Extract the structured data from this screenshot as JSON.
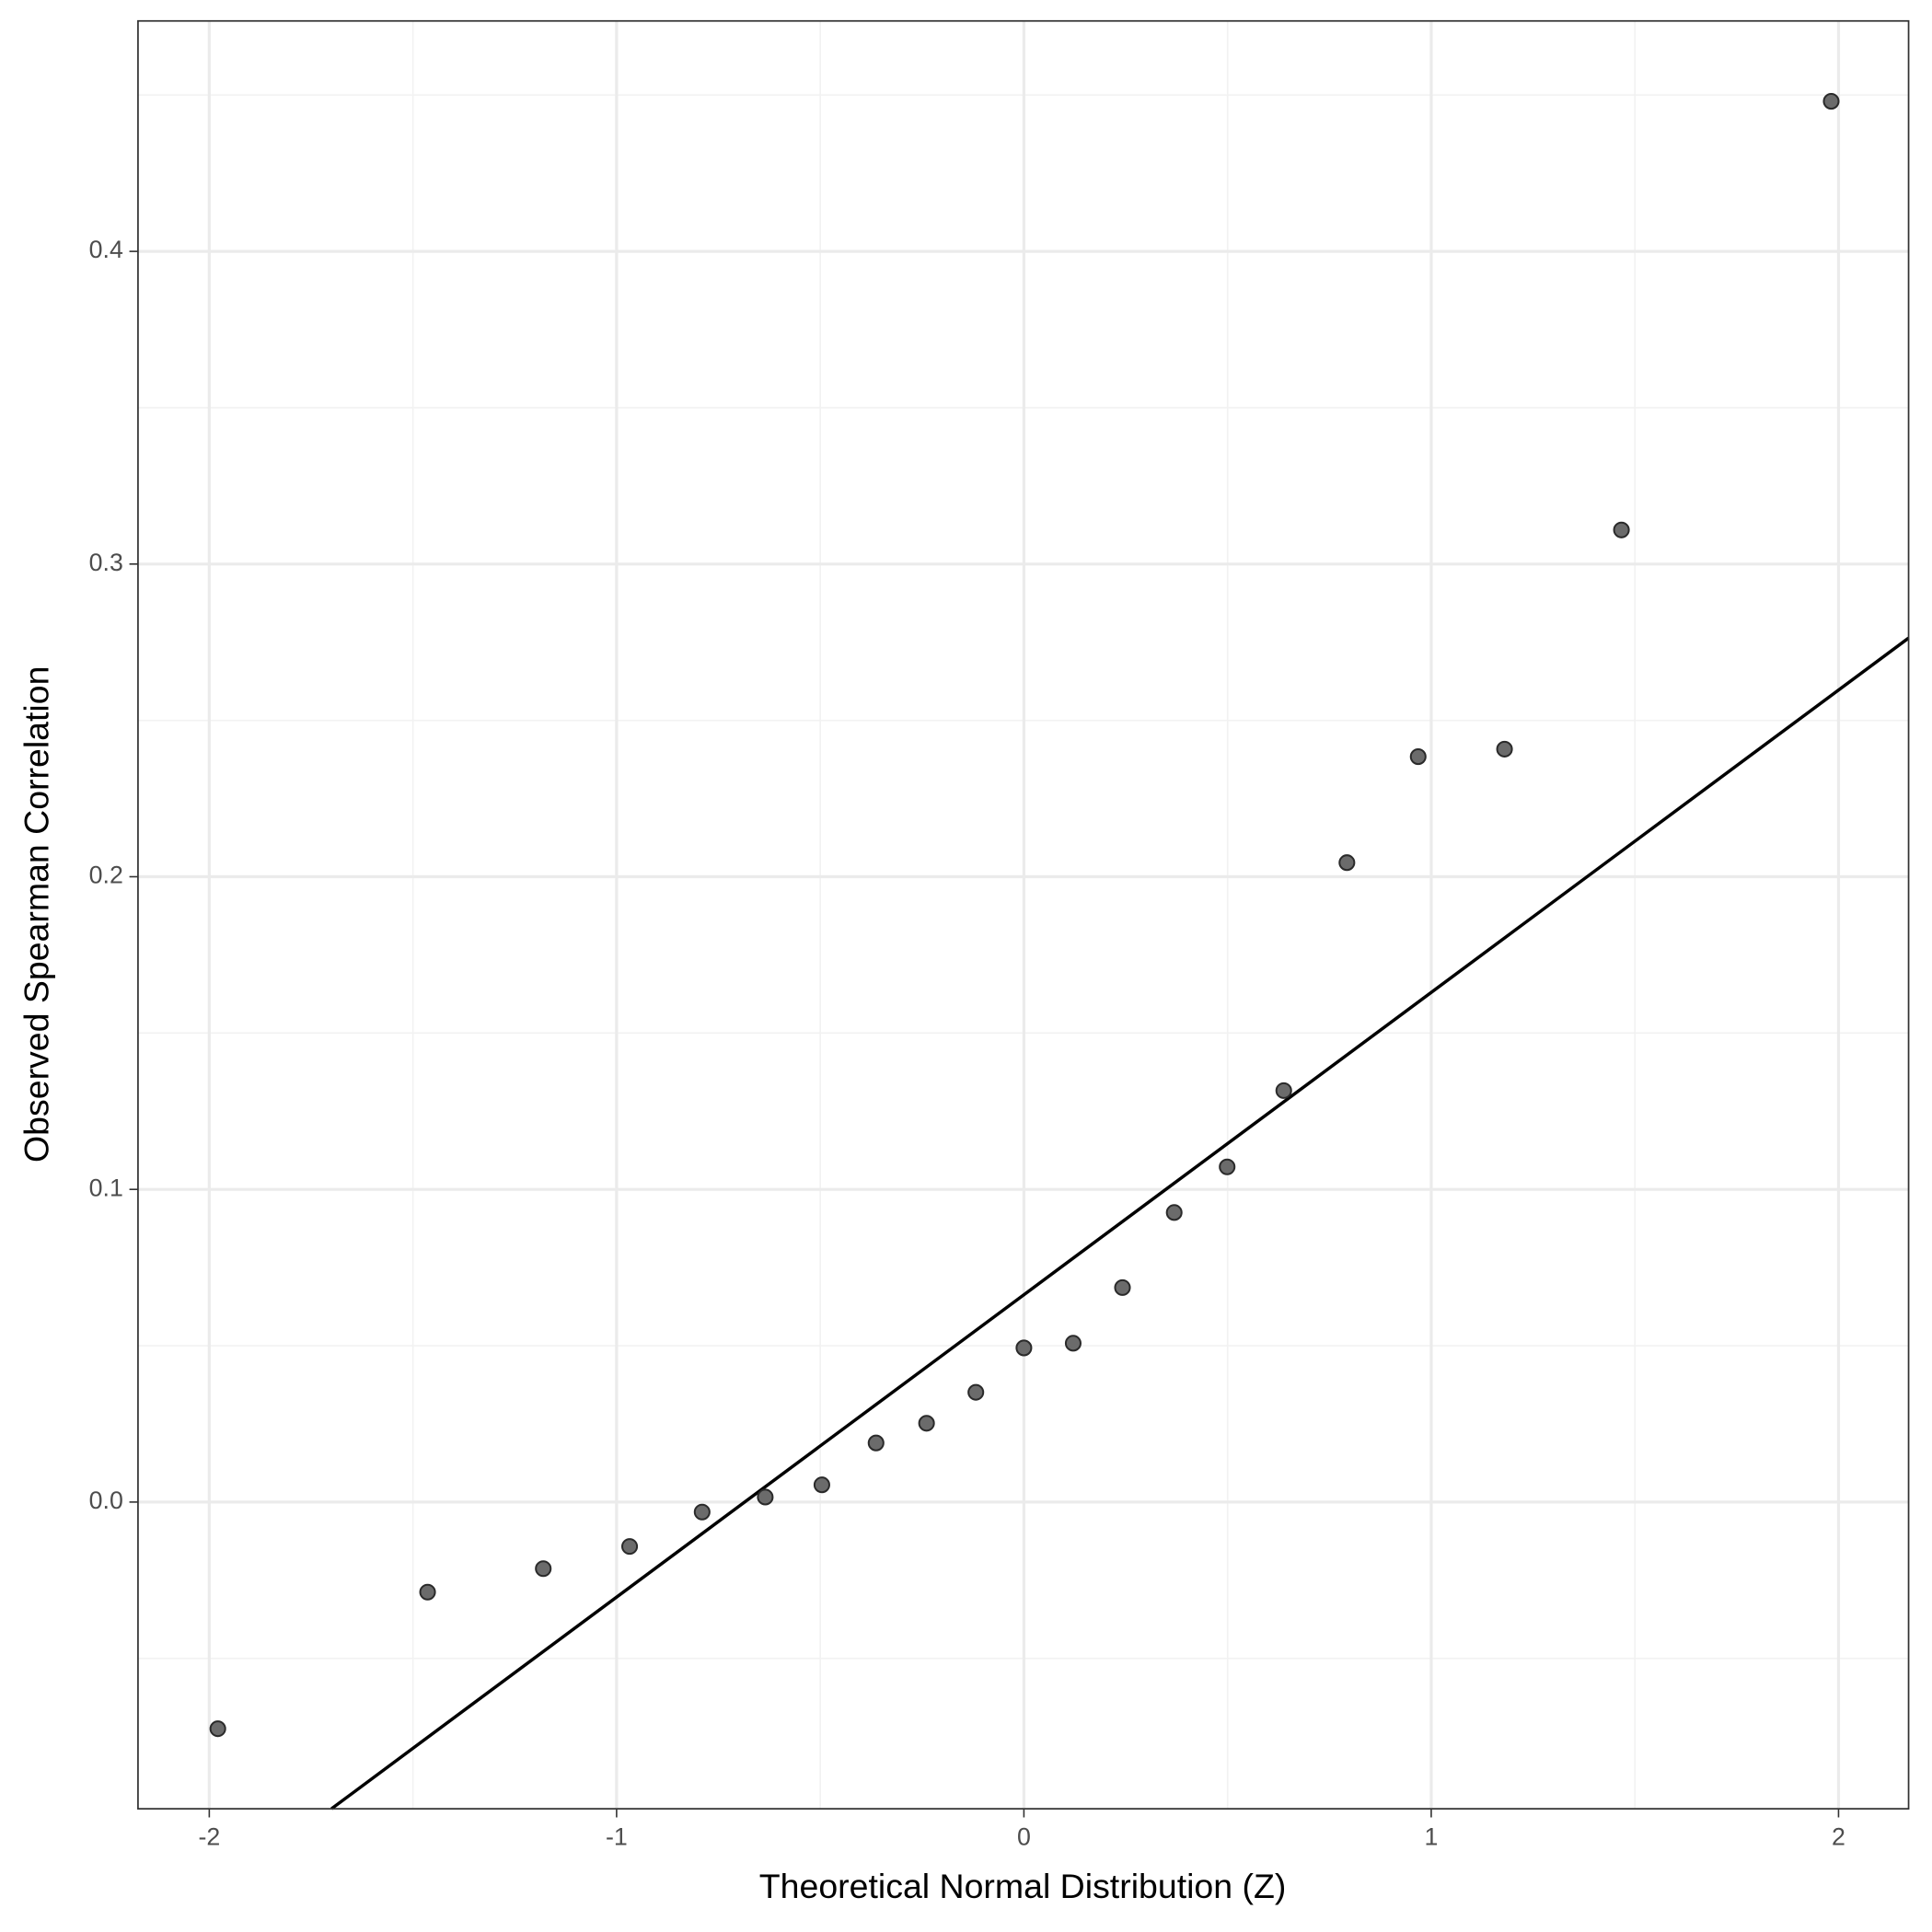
{
  "chart_data": {
    "type": "scatter",
    "xlabel": "Theoretical Normal Distribution (Z)",
    "ylabel": "Observed Spearman Correlation",
    "x": [
      -1.979,
      -1.464,
      -1.18,
      -0.968,
      -0.79,
      -0.635,
      -0.496,
      -0.363,
      -0.239,
      -0.118,
      0,
      0.121,
      0.242,
      0.369,
      0.499,
      0.638,
      0.793,
      0.968,
      1.18,
      1.467,
      1.982
    ],
    "values": [
      -0.0725,
      -0.0288,
      -0.0213,
      -0.0142,
      -0.0032,
      0.0016,
      0.0055,
      0.0189,
      0.0252,
      0.0351,
      0.0493,
      0.0508,
      0.0686,
      0.0926,
      0.1072,
      0.1316,
      0.2045,
      0.2384,
      0.2408,
      0.3109,
      0.448
    ],
    "color": "#6b6b6b",
    "reference_line": {
      "slope": 0.0967,
      "intercept": 0.0663,
      "color": "#000000"
    },
    "xlim": [
      -2.175,
      2.172
    ],
    "ylim": [
      -0.0981,
      0.4737
    ],
    "xticks": [
      -2,
      -1,
      0,
      1,
      2
    ],
    "yticks": [
      {
        "value": 0,
        "label": "0.0"
      },
      0.1,
      0.2,
      0.3,
      0.4
    ],
    "minor_xticks": [
      -1.5,
      -0.5,
      0.5,
      1.5
    ],
    "minor_yticks": [
      -0.05,
      0.05,
      0.15,
      0.25,
      0.35,
      0.45
    ],
    "grid": true
  }
}
